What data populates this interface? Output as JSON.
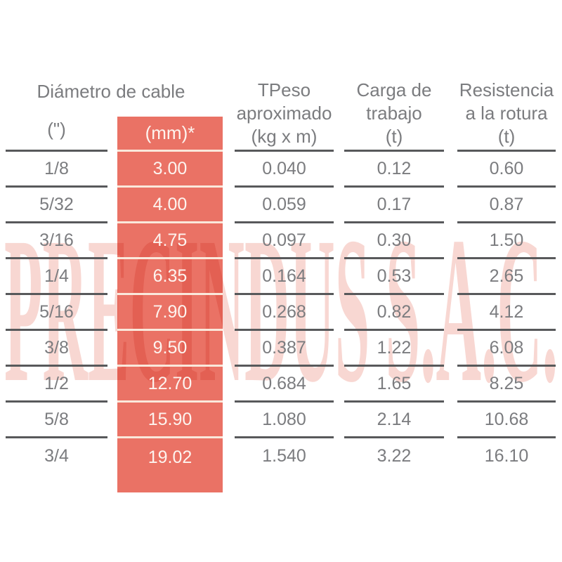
{
  "watermark": {
    "text": "PRECINDUS S.A.C."
  },
  "table": {
    "group_header": "Diámetro de cable",
    "columns": [
      {
        "header": "(\")"
      },
      {
        "header": "(mm)*"
      },
      {
        "lines": [
          "TPeso",
          "aproximado",
          "(kg x m)"
        ]
      },
      {
        "lines": [
          "Carga de",
          "trabajo",
          "(t)"
        ]
      },
      {
        "lines": [
          "Resistencia",
          "a la rotura",
          "(t)"
        ]
      }
    ],
    "rows": [
      {
        "inches": "1/8",
        "mm": "3.00",
        "peso": "0.040",
        "carga": "0.12",
        "rotura": "0.60"
      },
      {
        "inches": "5/32",
        "mm": "4.00",
        "peso": "0.059",
        "carga": "0.17",
        "rotura": "0.87"
      },
      {
        "inches": "3/16",
        "mm": "4.75",
        "peso": "0.097",
        "carga": "0.30",
        "rotura": "1.50"
      },
      {
        "inches": "1/4",
        "mm": "6.35",
        "peso": "0.164",
        "carga": "0.53",
        "rotura": "2.65"
      },
      {
        "inches": "5/16",
        "mm": "7.90",
        "peso": "0.268",
        "carga": "0.82",
        "rotura": "4.12"
      },
      {
        "inches": "3/8",
        "mm": "9.50",
        "peso": "0.387",
        "carga": "1.22",
        "rotura": "6.08"
      },
      {
        "inches": "1/2",
        "mm": "12.70",
        "peso": "0.684",
        "carga": "1.65",
        "rotura": "8.25"
      },
      {
        "inches": "5/8",
        "mm": "15.90",
        "peso": "1.080",
        "carga": "2.14",
        "rotura": "10.68"
      },
      {
        "inches": "3/4",
        "mm": "19.02",
        "peso": "1.540",
        "carga": "3.22",
        "rotura": "16.10"
      }
    ]
  },
  "colors": {
    "accent": "#ea7265",
    "line": "#58595b",
    "text": "#7b7c7f",
    "light_text": "#fdf4ef",
    "separator": "#fae8db",
    "watermark": "#f8d7d2",
    "background": "#ffffff"
  }
}
